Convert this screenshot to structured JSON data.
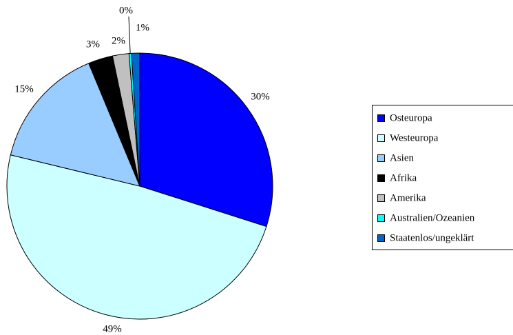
{
  "chart_data": {
    "type": "pie",
    "categories": [
      "Osteuropa",
      "Westeuropa",
      "Asien",
      "Afrika",
      "Amerika",
      "Australien/Ozeanien",
      "Staatenlos/ungeklärt"
    ],
    "values": [
      30,
      49,
      15,
      3,
      2,
      0.3,
      1
    ],
    "value_labels": [
      "30%",
      "49%",
      "15%",
      "3%",
      "2%",
      "0%",
      "1%"
    ],
    "colors": [
      "#0000ff",
      "#ccffff",
      "#99ccff",
      "#000000",
      "#c0c0c0",
      "#00ffff",
      "#0066cc"
    ],
    "legend": "right"
  }
}
